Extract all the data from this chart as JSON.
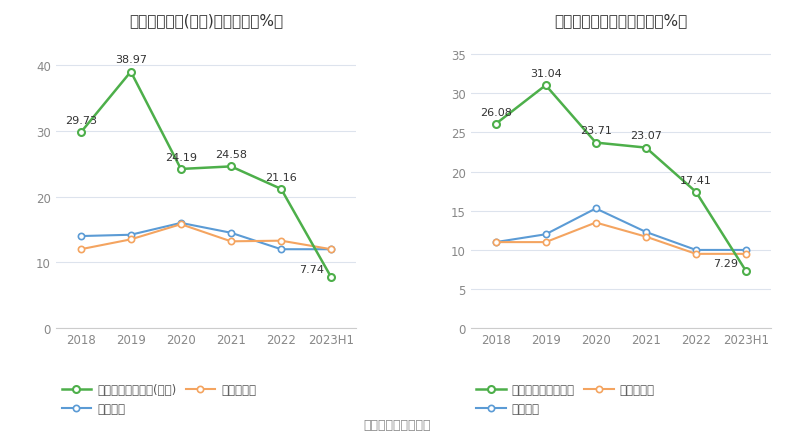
{
  "chart1": {
    "title": "净资产收益率(加权)历年情况（%）",
    "x_labels": [
      "2018",
      "2019",
      "2020",
      "2021",
      "2022",
      "2023H1"
    ],
    "green_line": {
      "label": "公司净资产收益率(加权)",
      "values": [
        29.73,
        38.97,
        24.19,
        24.58,
        21.16,
        7.74
      ]
    },
    "blue_line": {
      "label": "行业均值",
      "values": [
        14.0,
        14.2,
        16.0,
        14.5,
        12.0,
        12.0
      ]
    },
    "orange_line": {
      "label": "行业中位数",
      "values": [
        12.0,
        13.5,
        15.8,
        13.2,
        13.3,
        12.0
      ]
    },
    "ylim": [
      0,
      44
    ],
    "yticks": [
      0,
      10,
      20,
      30,
      40
    ]
  },
  "chart2": {
    "title": "投入资本回报率历年情况（%）",
    "x_labels": [
      "2018",
      "2019",
      "2020",
      "2021",
      "2022",
      "2023H1"
    ],
    "green_line": {
      "label": "公司投入资本回报率",
      "values": [
        26.08,
        31.04,
        23.71,
        23.07,
        17.41,
        7.29
      ]
    },
    "blue_line": {
      "label": "行业均值",
      "values": [
        11.0,
        12.0,
        15.3,
        12.3,
        10.0,
        10.0
      ]
    },
    "orange_line": {
      "label": "行业中位数",
      "values": [
        11.0,
        11.0,
        13.5,
        11.7,
        9.5,
        9.5
      ]
    },
    "ylim": [
      0,
      37
    ],
    "yticks": [
      0,
      5,
      10,
      15,
      20,
      25,
      30,
      35
    ]
  },
  "colors": {
    "green": "#4daf4a",
    "blue": "#5b9bd5",
    "orange": "#f4a460",
    "grid": "#dde3ed",
    "text": "#333333",
    "tick_text": "#888888"
  },
  "source_text": "数据来源：恒生聚源",
  "background_color": "#ffffff"
}
